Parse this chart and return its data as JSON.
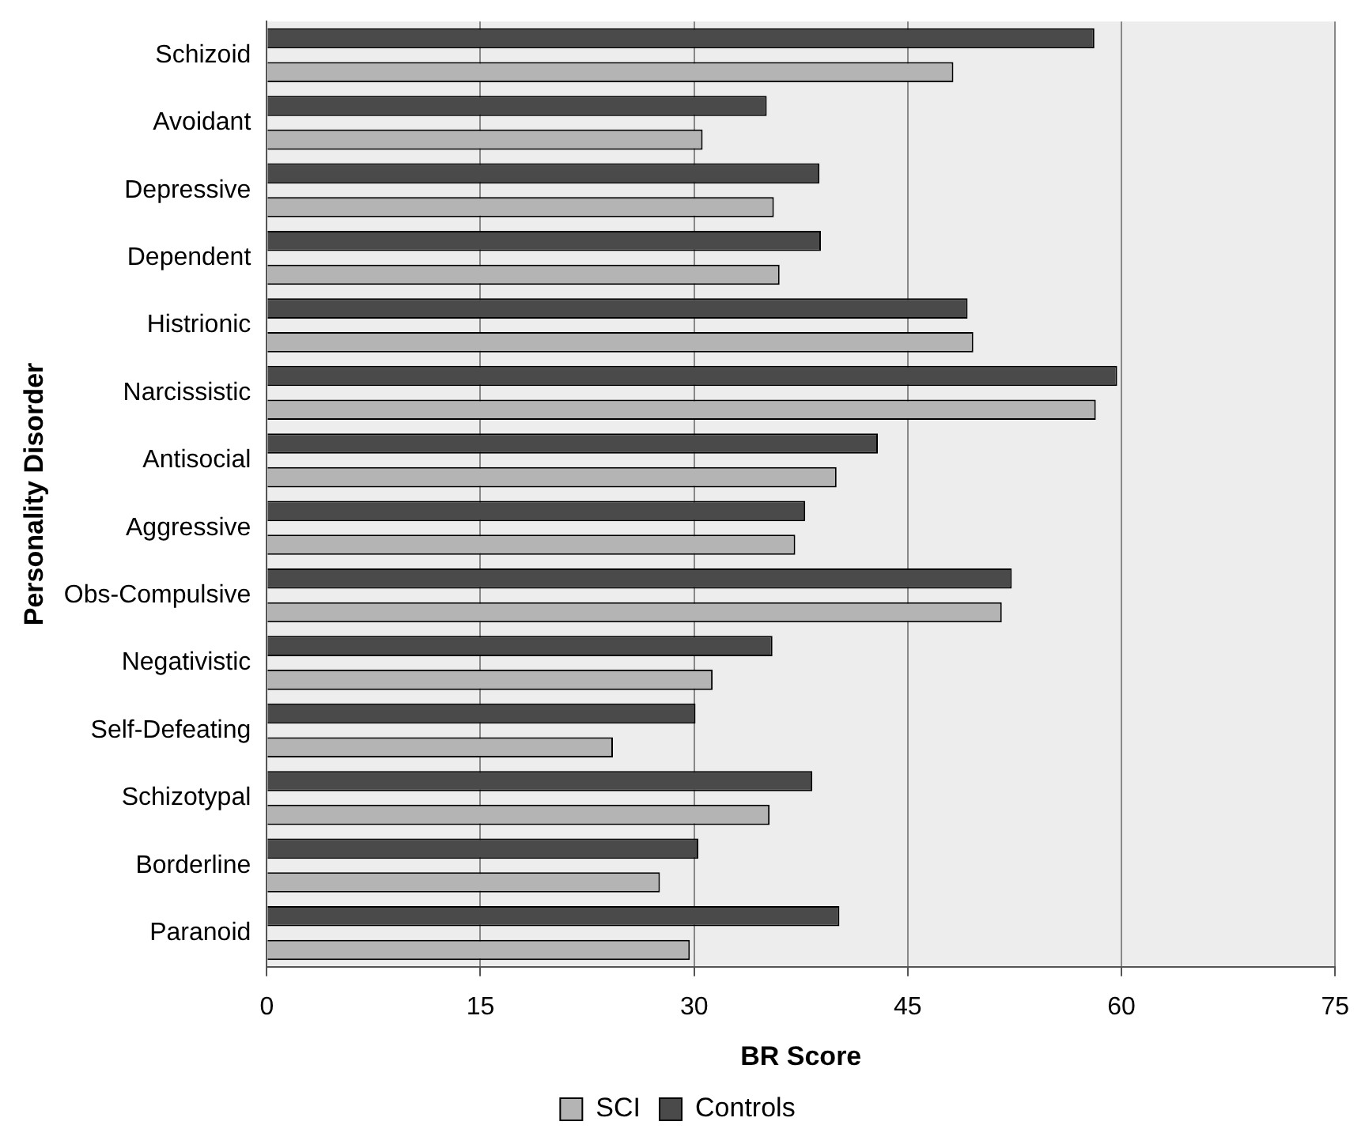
{
  "chart_data": {
    "type": "bar",
    "orientation": "horizontal",
    "xlabel": "BR Score",
    "ylabel": "Personality Disorder",
    "categories": [
      "Schizoid",
      "Avoidant",
      "Depressive",
      "Dependent",
      "Histrionic",
      "Narcissistic",
      "Antisocial",
      "Aggressive",
      "Obs-Compulsive",
      "Negativistic",
      "Self-Defeating",
      "Schizotypal",
      "Borderline",
      "Paranoid"
    ],
    "series": [
      {
        "name": "SCI",
        "color": "#b4b4b4",
        "values": [
          48.2,
          30.6,
          35.6,
          36.0,
          49.6,
          58.2,
          40.0,
          37.1,
          51.6,
          31.3,
          24.3,
          35.3,
          27.6,
          29.7
        ]
      },
      {
        "name": "Controls",
        "color": "#4a4a4a",
        "values": [
          58.1,
          35.1,
          38.8,
          38.9,
          49.2,
          59.7,
          42.9,
          37.8,
          52.3,
          35.5,
          30.1,
          38.3,
          30.3,
          40.2
        ]
      }
    ],
    "xlim": [
      0,
      75
    ],
    "xticks": [
      0,
      15,
      30,
      45,
      60,
      75
    ],
    "grid": "x",
    "legend": "bottom"
  }
}
